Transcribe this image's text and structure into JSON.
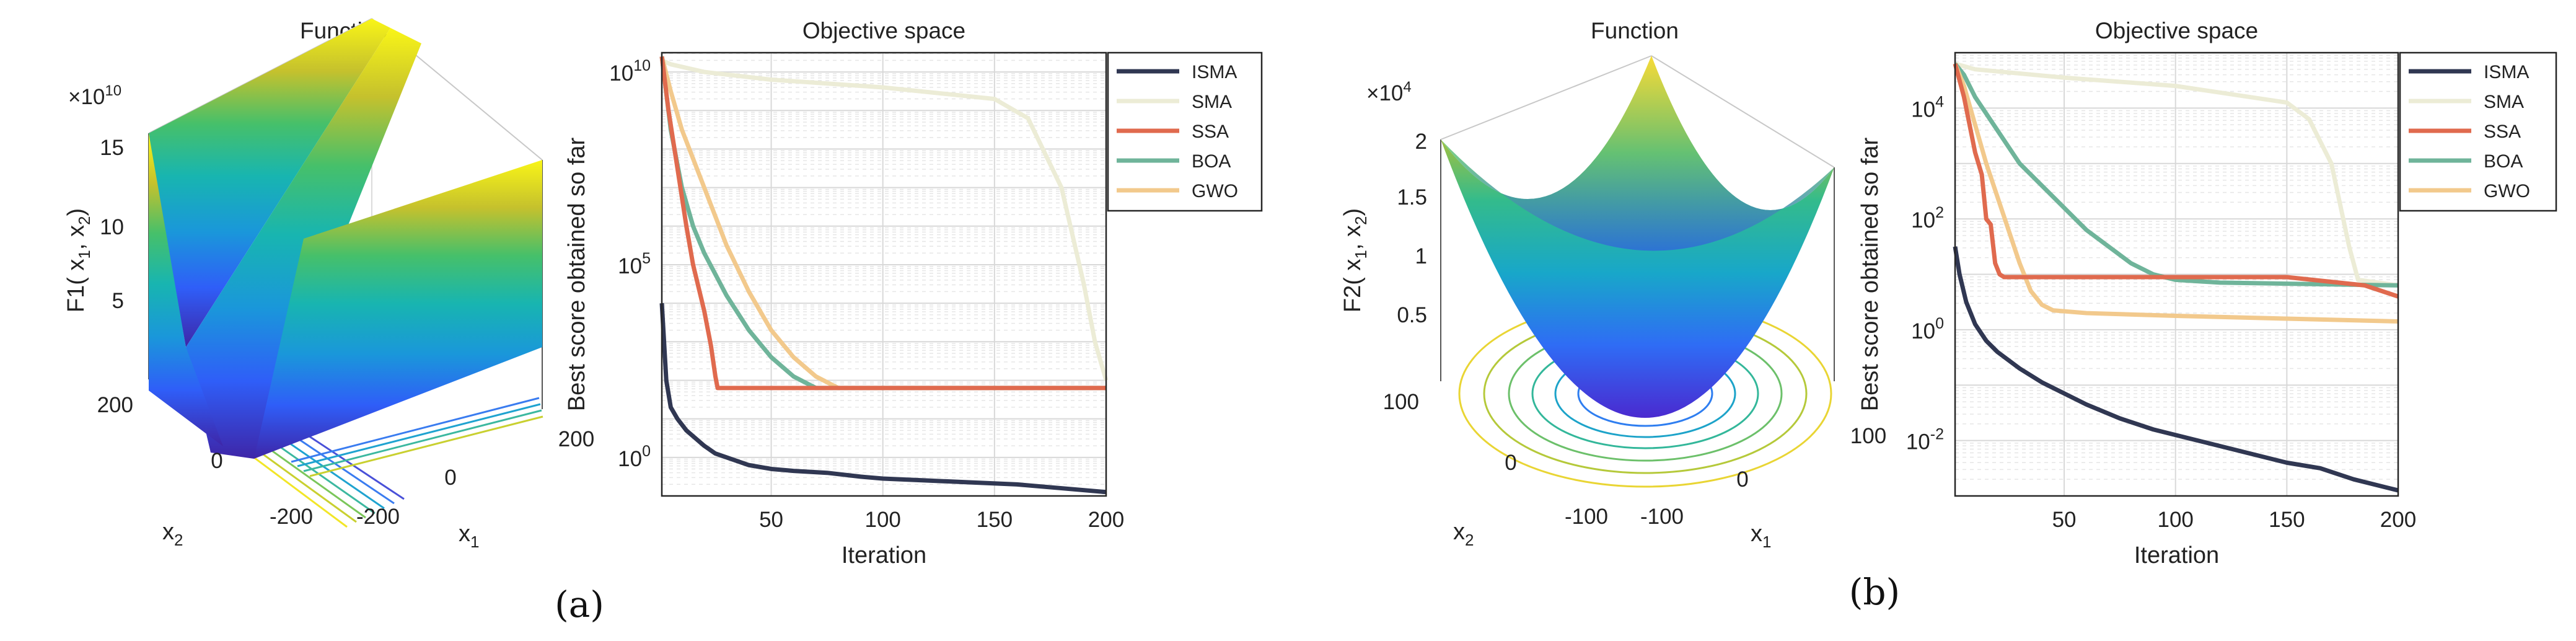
{
  "colors": {
    "ISMA": "#303752",
    "SMA": "#ececd6",
    "SSA": "#e06a4e",
    "BOA": "#6fb49a",
    "GWO": "#f2c98c"
  },
  "panels": [
    {
      "caption": "(a)",
      "function": {
        "title": "Function",
        "exponent_label": "×10",
        "exponent_power": "10",
        "zlabel_main": "F1( x",
        "zlabel_mid": ", x",
        "zlabel_end": ")",
        "xlabel": "x",
        "ylabel": "x",
        "sub1": "1",
        "sub2": "2",
        "z_ticks": [
          "15",
          "10",
          "5"
        ],
        "x_ticks": [
          "-200",
          "0",
          "200"
        ],
        "y_ticks": [
          "200",
          "0",
          "-200"
        ]
      }
    },
    {
      "caption": "(b)",
      "function": {
        "title": "Function",
        "exponent_label": "×10",
        "exponent_power": "4",
        "zlabel_main": "F2( x",
        "zlabel_mid": ", x",
        "zlabel_end": ")",
        "xlabel": "x",
        "ylabel": "x",
        "sub1": "1",
        "sub2": "2",
        "z_ticks": [
          "2",
          "1.5",
          "1",
          "0.5"
        ],
        "x_ticks": [
          "-100",
          "0",
          "100"
        ],
        "y_ticks": [
          "100",
          "0",
          "-100"
        ]
      }
    }
  ],
  "chart_data": [
    {
      "type": "line",
      "title": "Objective space",
      "xlabel": "Iteration",
      "ylabel": "Best score obtained so far",
      "yscale": "log",
      "xlim": [
        1,
        200
      ],
      "ylim_log10": [
        -1,
        10.5
      ],
      "x_ticks": [
        "50",
        "100",
        "150",
        "200"
      ],
      "y_ticks": [
        {
          "base": "10",
          "exp": "10"
        },
        {
          "base": "10",
          "exp": "5"
        },
        {
          "base": "10",
          "exp": "0"
        }
      ],
      "legend": [
        "ISMA",
        "SMA",
        "SSA",
        "BOA",
        "GWO"
      ],
      "legend_position": "top-right-outside",
      "series": [
        {
          "name": "SMA",
          "x": [
            1,
            5,
            20,
            50,
            100,
            150,
            165,
            180,
            190,
            195,
            200
          ],
          "log10_y": [
            10.3,
            10.2,
            10.0,
            9.8,
            9.6,
            9.3,
            8.8,
            7.0,
            4.5,
            3.0,
            2.0
          ]
        },
        {
          "name": "GWO",
          "x": [
            1,
            5,
            10,
            20,
            30,
            40,
            50,
            60,
            70,
            80,
            200
          ],
          "log10_y": [
            10.4,
            9.5,
            8.5,
            7.0,
            5.5,
            4.3,
            3.3,
            2.6,
            2.1,
            1.8,
            1.8
          ]
        },
        {
          "name": "BOA",
          "x": [
            1,
            5,
            10,
            15,
            20,
            30,
            40,
            50,
            60,
            70,
            200
          ],
          "log10_y": [
            10.4,
            8.5,
            7.0,
            6.0,
            5.3,
            4.2,
            3.3,
            2.6,
            2.1,
            1.8,
            1.8
          ]
        },
        {
          "name": "SSA",
          "x": [
            1,
            4,
            8,
            12,
            15,
            20,
            23,
            25,
            26,
            200
          ],
          "log10_y": [
            10.4,
            9.0,
            7.5,
            6.0,
            5.0,
            3.8,
            2.9,
            2.1,
            1.8,
            1.8
          ]
        },
        {
          "name": "ISMA",
          "x": [
            1,
            3,
            5,
            8,
            12,
            16,
            20,
            25,
            30,
            40,
            50,
            60,
            75,
            90,
            100,
            120,
            140,
            160,
            180,
            200
          ],
          "log10_y": [
            4.0,
            2.0,
            1.3,
            1.0,
            0.7,
            0.5,
            0.3,
            0.1,
            0.0,
            -0.2,
            -0.3,
            -0.35,
            -0.4,
            -0.5,
            -0.55,
            -0.6,
            -0.65,
            -0.7,
            -0.8,
            -0.9
          ]
        }
      ]
    },
    {
      "type": "line",
      "title": "Objective space",
      "xlabel": "Iteration",
      "ylabel": "Best score obtained so far",
      "yscale": "log",
      "xlim": [
        1,
        200
      ],
      "ylim_log10": [
        -3,
        5
      ],
      "x_ticks": [
        "50",
        "100",
        "150",
        "200"
      ],
      "y_ticks": [
        {
          "base": "10",
          "exp": "4"
        },
        {
          "base": "10",
          "exp": "2"
        },
        {
          "base": "10",
          "exp": "0"
        },
        {
          "base": "10",
          "exp": "-2"
        }
      ],
      "legend": [
        "ISMA",
        "SMA",
        "SSA",
        "BOA",
        "GWO"
      ],
      "legend_position": "top-right-outside",
      "series": [
        {
          "name": "SMA",
          "x": [
            1,
            10,
            50,
            100,
            150,
            160,
            170,
            178,
            182,
            200
          ],
          "log10_y": [
            4.8,
            4.7,
            4.55,
            4.4,
            4.1,
            3.8,
            3.0,
            1.5,
            0.9,
            0.8
          ]
        },
        {
          "name": "BOA",
          "x": [
            1,
            5,
            10,
            20,
            30,
            40,
            50,
            60,
            70,
            80,
            90,
            100,
            120,
            200
          ],
          "log10_y": [
            4.8,
            4.6,
            4.2,
            3.6,
            3.0,
            2.6,
            2.2,
            1.8,
            1.5,
            1.2,
            1.0,
            0.9,
            0.85,
            0.8
          ]
        },
        {
          "name": "GWO",
          "x": [
            1,
            5,
            10,
            15,
            20,
            25,
            30,
            35,
            40,
            45,
            60,
            100,
            150,
            200
          ],
          "log10_y": [
            4.8,
            4.4,
            3.7,
            3.0,
            2.4,
            1.8,
            1.2,
            0.7,
            0.45,
            0.35,
            0.3,
            0.25,
            0.2,
            0.15
          ]
        },
        {
          "name": "SSA",
          "x": [
            1,
            5,
            10,
            13,
            15,
            17,
            19,
            21,
            23,
            25,
            50,
            100,
            150,
            185,
            200
          ],
          "log10_y": [
            4.8,
            4.2,
            3.2,
            2.8,
            2.0,
            1.9,
            1.2,
            1.0,
            0.95,
            0.95,
            0.95,
            0.95,
            0.95,
            0.8,
            0.6
          ]
        },
        {
          "name": "ISMA",
          "x": [
            1,
            3,
            6,
            10,
            15,
            20,
            30,
            40,
            50,
            60,
            75,
            90,
            110,
            130,
            150,
            165,
            180,
            195,
            200
          ],
          "log10_y": [
            1.5,
            1.0,
            0.5,
            0.1,
            -0.2,
            -0.4,
            -0.7,
            -0.95,
            -1.15,
            -1.35,
            -1.6,
            -1.8,
            -2.0,
            -2.2,
            -2.4,
            -2.5,
            -2.7,
            -2.85,
            -2.9
          ]
        }
      ]
    }
  ]
}
